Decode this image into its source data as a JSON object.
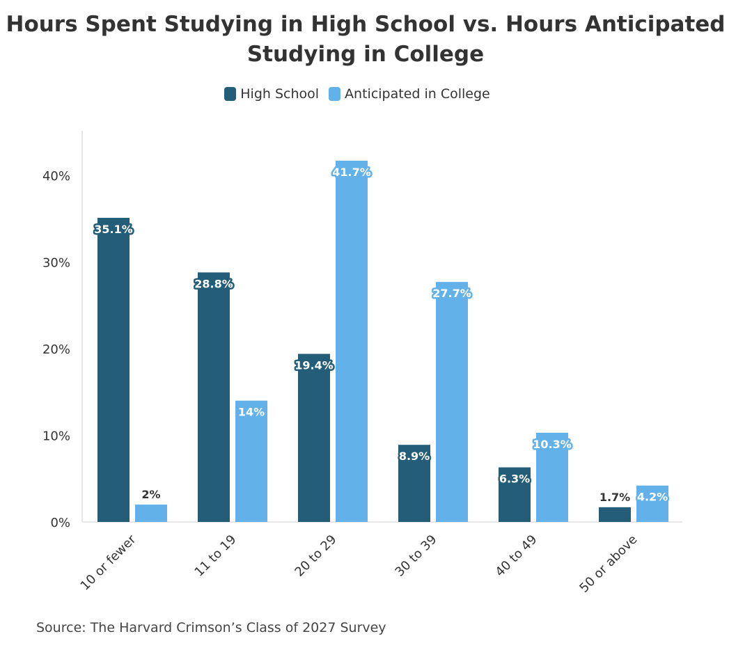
{
  "title": "Hours Spent Studying in High School vs. Hours Anticipated Studying in College",
  "source": "Source: The Harvard Crimson’s Class of 2027 Survey",
  "chart_data": {
    "type": "bar",
    "title": "Hours Spent Studying in High School vs. Hours Anticipated Studying in College",
    "xlabel": "",
    "ylabel": "",
    "categories": [
      "10 or fewer",
      "11 to 19",
      "20 to 29",
      "30 to 39",
      "40 to 49",
      "50 or above"
    ],
    "series": [
      {
        "name": "High School",
        "color": "#245d78",
        "values": [
          35.1,
          28.8,
          19.4,
          8.9,
          6.3,
          1.7
        ],
        "labels": [
          "35.1%",
          "28.8%",
          "19.4%",
          "8.9%",
          "6.3%",
          "1.7%"
        ]
      },
      {
        "name": "Anticipated in College",
        "color": "#62b1e8",
        "values": [
          2,
          14,
          41.7,
          27.7,
          10.3,
          4.2
        ],
        "labels": [
          "2%",
          "14%",
          "41.7%",
          "27.7%",
          "10.3%",
          "4.2%"
        ]
      }
    ],
    "yticks": [
      0,
      10,
      20,
      30,
      40
    ],
    "ytick_labels": [
      "0%",
      "10%",
      "20%",
      "30%",
      "40%"
    ],
    "ylim": [
      0,
      45
    ],
    "grid": false,
    "legend": "top-center"
  }
}
